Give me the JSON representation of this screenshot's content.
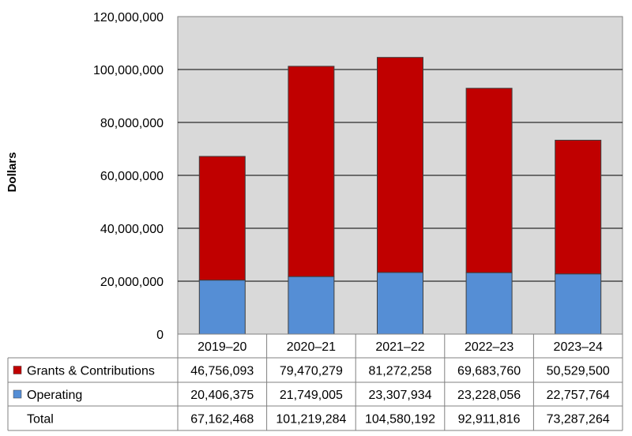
{
  "chart_data": {
    "type": "bar",
    "stacked": true,
    "ylabel": "Dollars",
    "ylim": [
      0,
      120000000
    ],
    "yticks": [
      0,
      20000000,
      40000000,
      60000000,
      80000000,
      100000000,
      120000000
    ],
    "ytick_labels": [
      "0",
      "20,000,000",
      "40,000,000",
      "60,000,000",
      "80,000,000",
      "100,000,000",
      "120,000,000"
    ],
    "categories": [
      "2019–20",
      "2020–21",
      "2021–22",
      "2022–23",
      "2023–24"
    ],
    "series": [
      {
        "name": "Operating",
        "color": "#558ed5",
        "values": [
          20406375,
          21749005,
          23307934,
          23228056,
          22757764
        ],
        "labels": [
          "20,406,375",
          "21,749,005",
          "23,307,934",
          "23,228,056",
          "22,757,764"
        ]
      },
      {
        "name": "Grants & Contributions",
        "color": "#c00000",
        "values": [
          46756093,
          79470279,
          81272258,
          69683760,
          50529500
        ],
        "labels": [
          "46,756,093",
          "79,470,279",
          "81,272,258",
          "69,683,760",
          "50,529,500"
        ]
      }
    ],
    "table": {
      "row_order": [
        "Grants & Contributions",
        "Operating",
        "Total"
      ],
      "total_label": "Total",
      "totals": [
        "67,162,468",
        "101,219,284",
        "104,580,192",
        "92,911,816",
        "73,287,264"
      ]
    },
    "plot_background": "#d9d9d9"
  }
}
